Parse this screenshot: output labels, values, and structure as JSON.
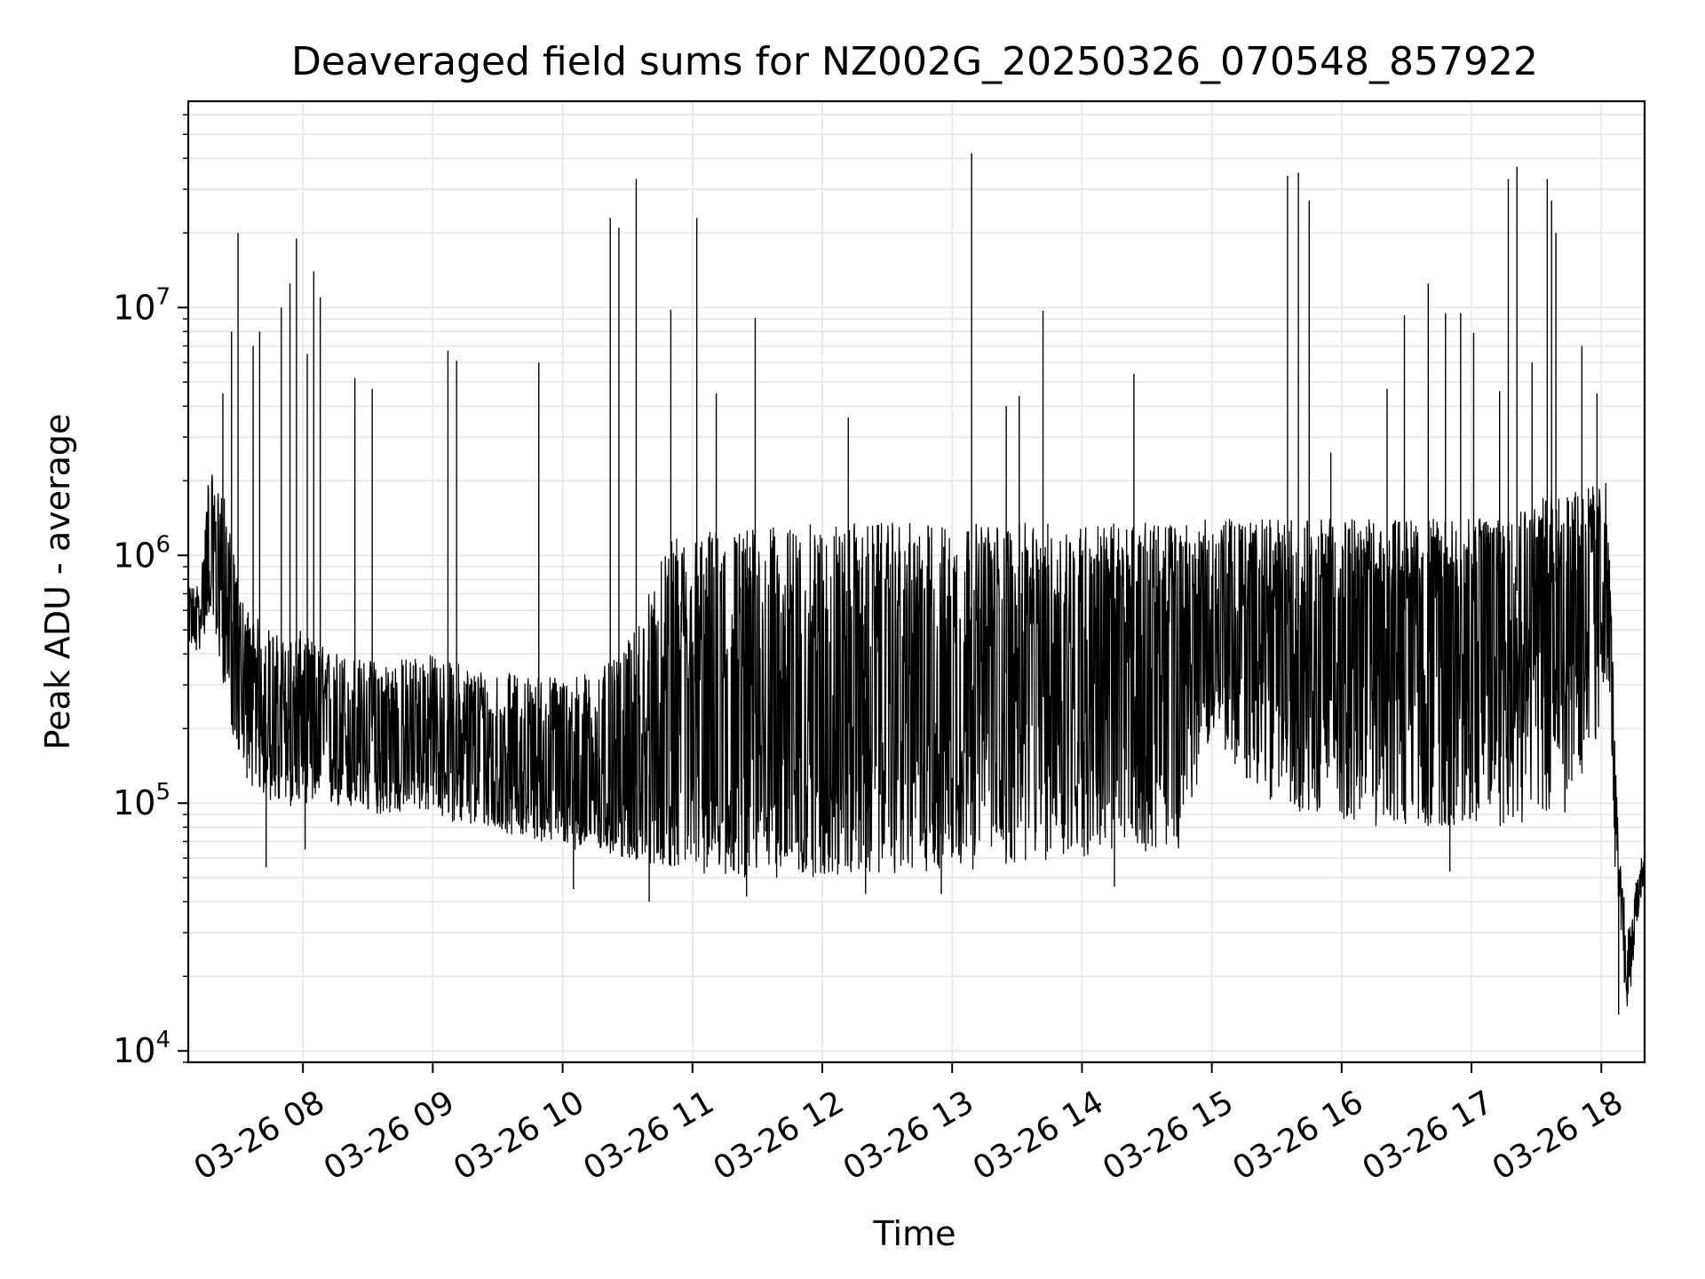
{
  "chart_data": {
    "type": "line",
    "title": "Deaveraged field sums for NZ002G_20250326_070548_857922",
    "xlabel": "Time",
    "ylabel": "Peak ADU - average",
    "yscale": "log",
    "grid": true,
    "legend": "none",
    "line_color": "#000000",
    "grid_color": "#e6e6e6",
    "xlim": [
      "2025-03-26 07:07",
      "2025-03-26 18:20"
    ],
    "ylim": [
      9000,
      68000000
    ],
    "x_ticks": [
      {
        "t": "2025-03-26 08:00",
        "label": "03-26 08"
      },
      {
        "t": "2025-03-26 09:00",
        "label": "03-26 09"
      },
      {
        "t": "2025-03-26 10:00",
        "label": "03-26 10"
      },
      {
        "t": "2025-03-26 11:00",
        "label": "03-26 11"
      },
      {
        "t": "2025-03-26 12:00",
        "label": "03-26 12"
      },
      {
        "t": "2025-03-26 13:00",
        "label": "03-26 13"
      },
      {
        "t": "2025-03-26 14:00",
        "label": "03-26 14"
      },
      {
        "t": "2025-03-26 15:00",
        "label": "03-26 15"
      },
      {
        "t": "2025-03-26 16:00",
        "label": "03-26 16"
      },
      {
        "t": "2025-03-26 17:00",
        "label": "03-26 17"
      },
      {
        "t": "2025-03-26 18:00",
        "label": "03-26 18"
      }
    ],
    "y_ticks": [
      {
        "v": 10000,
        "base": "10",
        "exp": "4"
      },
      {
        "v": 100000,
        "base": "10",
        "exp": "5"
      },
      {
        "v": 1000000,
        "base": "10",
        "exp": "6"
      },
      {
        "v": 10000000,
        "base": "10",
        "exp": "7"
      }
    ],
    "series": [
      {
        "x": [
          "2025-03-26 07:07",
          "2025-03-26 07:10",
          "2025-03-26 07:13",
          "2025-03-26 07:15",
          "2025-03-26 07:17",
          "2025-03-26 07:19",
          "2025-03-26 07:22",
          "2025-03-26 07:25",
          "2025-03-26 07:28",
          "2025-03-26 07:31",
          "2025-03-26 07:35",
          "2025-03-26 07:40",
          "2025-03-26 07:46",
          "2025-03-26 07:52",
          "2025-03-26 07:58",
          "2025-03-26 08:05",
          "2025-03-26 08:12",
          "2025-03-26 08:20",
          "2025-03-26 08:28",
          "2025-03-26 08:36",
          "2025-03-26 08:44",
          "2025-03-26 08:52",
          "2025-03-26 09:00",
          "2025-03-26 09:08",
          "2025-03-26 09:16",
          "2025-03-26 09:24",
          "2025-03-26 09:32",
          "2025-03-26 09:40",
          "2025-03-26 09:48",
          "2025-03-26 09:56",
          "2025-03-26 10:04",
          "2025-03-26 10:12",
          "2025-03-26 10:20",
          "2025-03-26 10:28",
          "2025-03-26 10:36",
          "2025-03-26 10:44",
          "2025-03-26 10:52",
          "2025-03-26 11:00",
          "2025-03-26 11:15",
          "2025-03-26 11:30",
          "2025-03-26 11:45",
          "2025-03-26 12:00",
          "2025-03-26 12:15",
          "2025-03-26 12:30",
          "2025-03-26 12:45",
          "2025-03-26 13:00",
          "2025-03-26 13:15",
          "2025-03-26 13:30",
          "2025-03-26 13:45",
          "2025-03-26 14:00",
          "2025-03-26 14:15",
          "2025-03-26 14:30",
          "2025-03-26 14:45",
          "2025-03-26 15:00",
          "2025-03-26 15:15",
          "2025-03-26 15:30",
          "2025-03-26 15:45",
          "2025-03-26 16:00",
          "2025-03-26 16:15",
          "2025-03-26 16:30",
          "2025-03-26 16:45",
          "2025-03-26 17:00",
          "2025-03-26 17:15",
          "2025-03-26 17:30",
          "2025-03-26 17:45",
          "2025-03-26 17:55",
          "2025-03-26 18:02",
          "2025-03-26 18:04",
          "2025-03-26 18:06",
          "2025-03-26 18:08",
          "2025-03-26 18:10",
          "2025-03-26 18:12",
          "2025-03-26 18:14",
          "2025-03-26 18:16",
          "2025-03-26 18:18",
          "2025-03-26 18:20"
        ],
        "y": [
          650000,
          550000,
          600000,
          900000,
          1200000,
          800000,
          1000000,
          600000,
          450000,
          350000,
          250000,
          220000,
          200000,
          190000,
          210000,
          200000,
          190000,
          185000,
          180000,
          175000,
          170000,
          180000,
          175000,
          165000,
          160000,
          150000,
          140000,
          140000,
          135000,
          130000,
          125000,
          120000,
          115000,
          110000,
          120000,
          140000,
          170000,
          200000,
          220000,
          230000,
          240000,
          250000,
          260000,
          270000,
          280000,
          300000,
          320000,
          340000,
          360000,
          380000,
          400000,
          420000,
          440000,
          480000,
          500000,
          520000,
          540000,
          560000,
          580000,
          600000,
          620000,
          650000,
          700000,
          750000,
          800000,
          900000,
          1000000,
          600000,
          150000,
          50000,
          30000,
          20000,
          25000,
          40000,
          50000,
          55000
        ],
        "envelope_low": [
          450000,
          400000,
          420000,
          500000,
          600000,
          450000,
          350000,
          250000,
          180000,
          150000,
          120000,
          110000,
          100000,
          95000,
          100000,
          100000,
          95000,
          95000,
          90000,
          90000,
          90000,
          95000,
          90000,
          85000,
          80000,
          80000,
          75000,
          75000,
          70000,
          70000,
          65000,
          65000,
          62000,
          60000,
          58000,
          56000,
          55000,
          52000,
          50000,
          50000,
          50000,
          50000,
          50000,
          52000,
          52000,
          54000,
          54000,
          56000,
          58000,
          60000,
          62000,
          64000,
          66000,
          200000,
          120000,
          100000,
          90000,
          85000,
          80000,
          80000,
          80000,
          80000,
          80000,
          85000,
          90000,
          120000,
          300000,
          200000,
          60000,
          35000,
          20000,
          15000,
          18000,
          30000,
          40000,
          45000
        ],
        "envelope_high": [
          750000,
          750000,
          800000,
          1500000,
          2500000,
          1800000,
          2000000,
          1500000,
          1000000,
          700000,
          600000,
          550000,
          500000,
          450000,
          500000,
          450000,
          420000,
          400000,
          380000,
          380000,
          380000,
          400000,
          400000,
          380000,
          360000,
          350000,
          340000,
          330000,
          330000,
          330000,
          330000,
          340000,
          360000,
          400000,
          600000,
          900000,
          1200000,
          1250000,
          1300000,
          1300000,
          1300000,
          1350000,
          1350000,
          1350000,
          1350000,
          1350000,
          1350000,
          1350000,
          1350000,
          1350000,
          1350000,
          1350000,
          1350000,
          1400000,
          1400000,
          1400000,
          1400000,
          1400000,
          1400000,
          1400000,
          1400000,
          1400000,
          1500000,
          1700000,
          1800000,
          1900000,
          2000000,
          900000,
          250000,
          60000,
          50000,
          30000,
          40000,
          50000,
          60000,
          60000
        ],
        "spikes": [
          {
            "t": "2025-03-26 07:23",
            "v": 4500000
          },
          {
            "t": "2025-03-26 07:27",
            "v": 8000000
          },
          {
            "t": "2025-03-26 07:30",
            "v": 20000000
          },
          {
            "t": "2025-03-26 07:37",
            "v": 7000000
          },
          {
            "t": "2025-03-26 07:40",
            "v": 8000000
          },
          {
            "t": "2025-03-26 07:50",
            "v": 10000000
          },
          {
            "t": "2025-03-26 07:54",
            "v": 12500000
          },
          {
            "t": "2025-03-26 07:57",
            "v": 19000000
          },
          {
            "t": "2025-03-26 08:02",
            "v": 6500000
          },
          {
            "t": "2025-03-26 08:05",
            "v": 14000000
          },
          {
            "t": "2025-03-26 08:08",
            "v": 11000000
          },
          {
            "t": "2025-03-26 08:24",
            "v": 5200000
          },
          {
            "t": "2025-03-26 08:32",
            "v": 4700000
          },
          {
            "t": "2025-03-26 09:07",
            "v": 6700000
          },
          {
            "t": "2025-03-26 09:11",
            "v": 6100000
          },
          {
            "t": "2025-03-26 09:49",
            "v": 6000000
          },
          {
            "t": "2025-03-26 10:22",
            "v": 23000000
          },
          {
            "t": "2025-03-26 10:26",
            "v": 21000000
          },
          {
            "t": "2025-03-26 10:34",
            "v": 33000000
          },
          {
            "t": "2025-03-26 10:50",
            "v": 9800000
          },
          {
            "t": "2025-03-26 11:02",
            "v": 23000000
          },
          {
            "t": "2025-03-26 11:11",
            "v": 4500000
          },
          {
            "t": "2025-03-26 11:29",
            "v": 9100000
          },
          {
            "t": "2025-03-26 12:12",
            "v": 3600000
          },
          {
            "t": "2025-03-26 13:09",
            "v": 42000000
          },
          {
            "t": "2025-03-26 13:25",
            "v": 4000000
          },
          {
            "t": "2025-03-26 13:31",
            "v": 4400000
          },
          {
            "t": "2025-03-26 13:42",
            "v": 9700000
          },
          {
            "t": "2025-03-26 14:24",
            "v": 5400000
          },
          {
            "t": "2025-03-26 15:35",
            "v": 34000000
          },
          {
            "t": "2025-03-26 15:40",
            "v": 35000000
          },
          {
            "t": "2025-03-26 15:45",
            "v": 27000000
          },
          {
            "t": "2025-03-26 15:55",
            "v": 2600000
          },
          {
            "t": "2025-03-26 16:21",
            "v": 4700000
          },
          {
            "t": "2025-03-26 16:29",
            "v": 9300000
          },
          {
            "t": "2025-03-26 16:40",
            "v": 12500000
          },
          {
            "t": "2025-03-26 16:48",
            "v": 9500000
          },
          {
            "t": "2025-03-26 16:55",
            "v": 9500000
          },
          {
            "t": "2025-03-26 17:01",
            "v": 7900000
          },
          {
            "t": "2025-03-26 17:13",
            "v": 4600000
          },
          {
            "t": "2025-03-26 17:17",
            "v": 33000000
          },
          {
            "t": "2025-03-26 17:21",
            "v": 37000000
          },
          {
            "t": "2025-03-26 17:28",
            "v": 6000000
          },
          {
            "t": "2025-03-26 17:35",
            "v": 33000000
          },
          {
            "t": "2025-03-26 17:37",
            "v": 27000000
          },
          {
            "t": "2025-03-26 17:39",
            "v": 20000000
          },
          {
            "t": "2025-03-26 17:51",
            "v": 7000000
          },
          {
            "t": "2025-03-26 17:58",
            "v": 4500000
          }
        ],
        "dips": [
          {
            "t": "2025-03-26 07:43",
            "v": 55000
          },
          {
            "t": "2025-03-26 08:01",
            "v": 65000
          },
          {
            "t": "2025-03-26 10:05",
            "v": 45000
          },
          {
            "t": "2025-03-26 10:40",
            "v": 40000
          },
          {
            "t": "2025-03-26 11:25",
            "v": 42000
          },
          {
            "t": "2025-03-26 12:20",
            "v": 43000
          },
          {
            "t": "2025-03-26 12:55",
            "v": 43000
          },
          {
            "t": "2025-03-26 14:15",
            "v": 46000
          },
          {
            "t": "2025-03-26 16:50",
            "v": 53000
          },
          {
            "t": "2025-03-26 18:08",
            "v": 14000
          }
        ]
      }
    ]
  }
}
